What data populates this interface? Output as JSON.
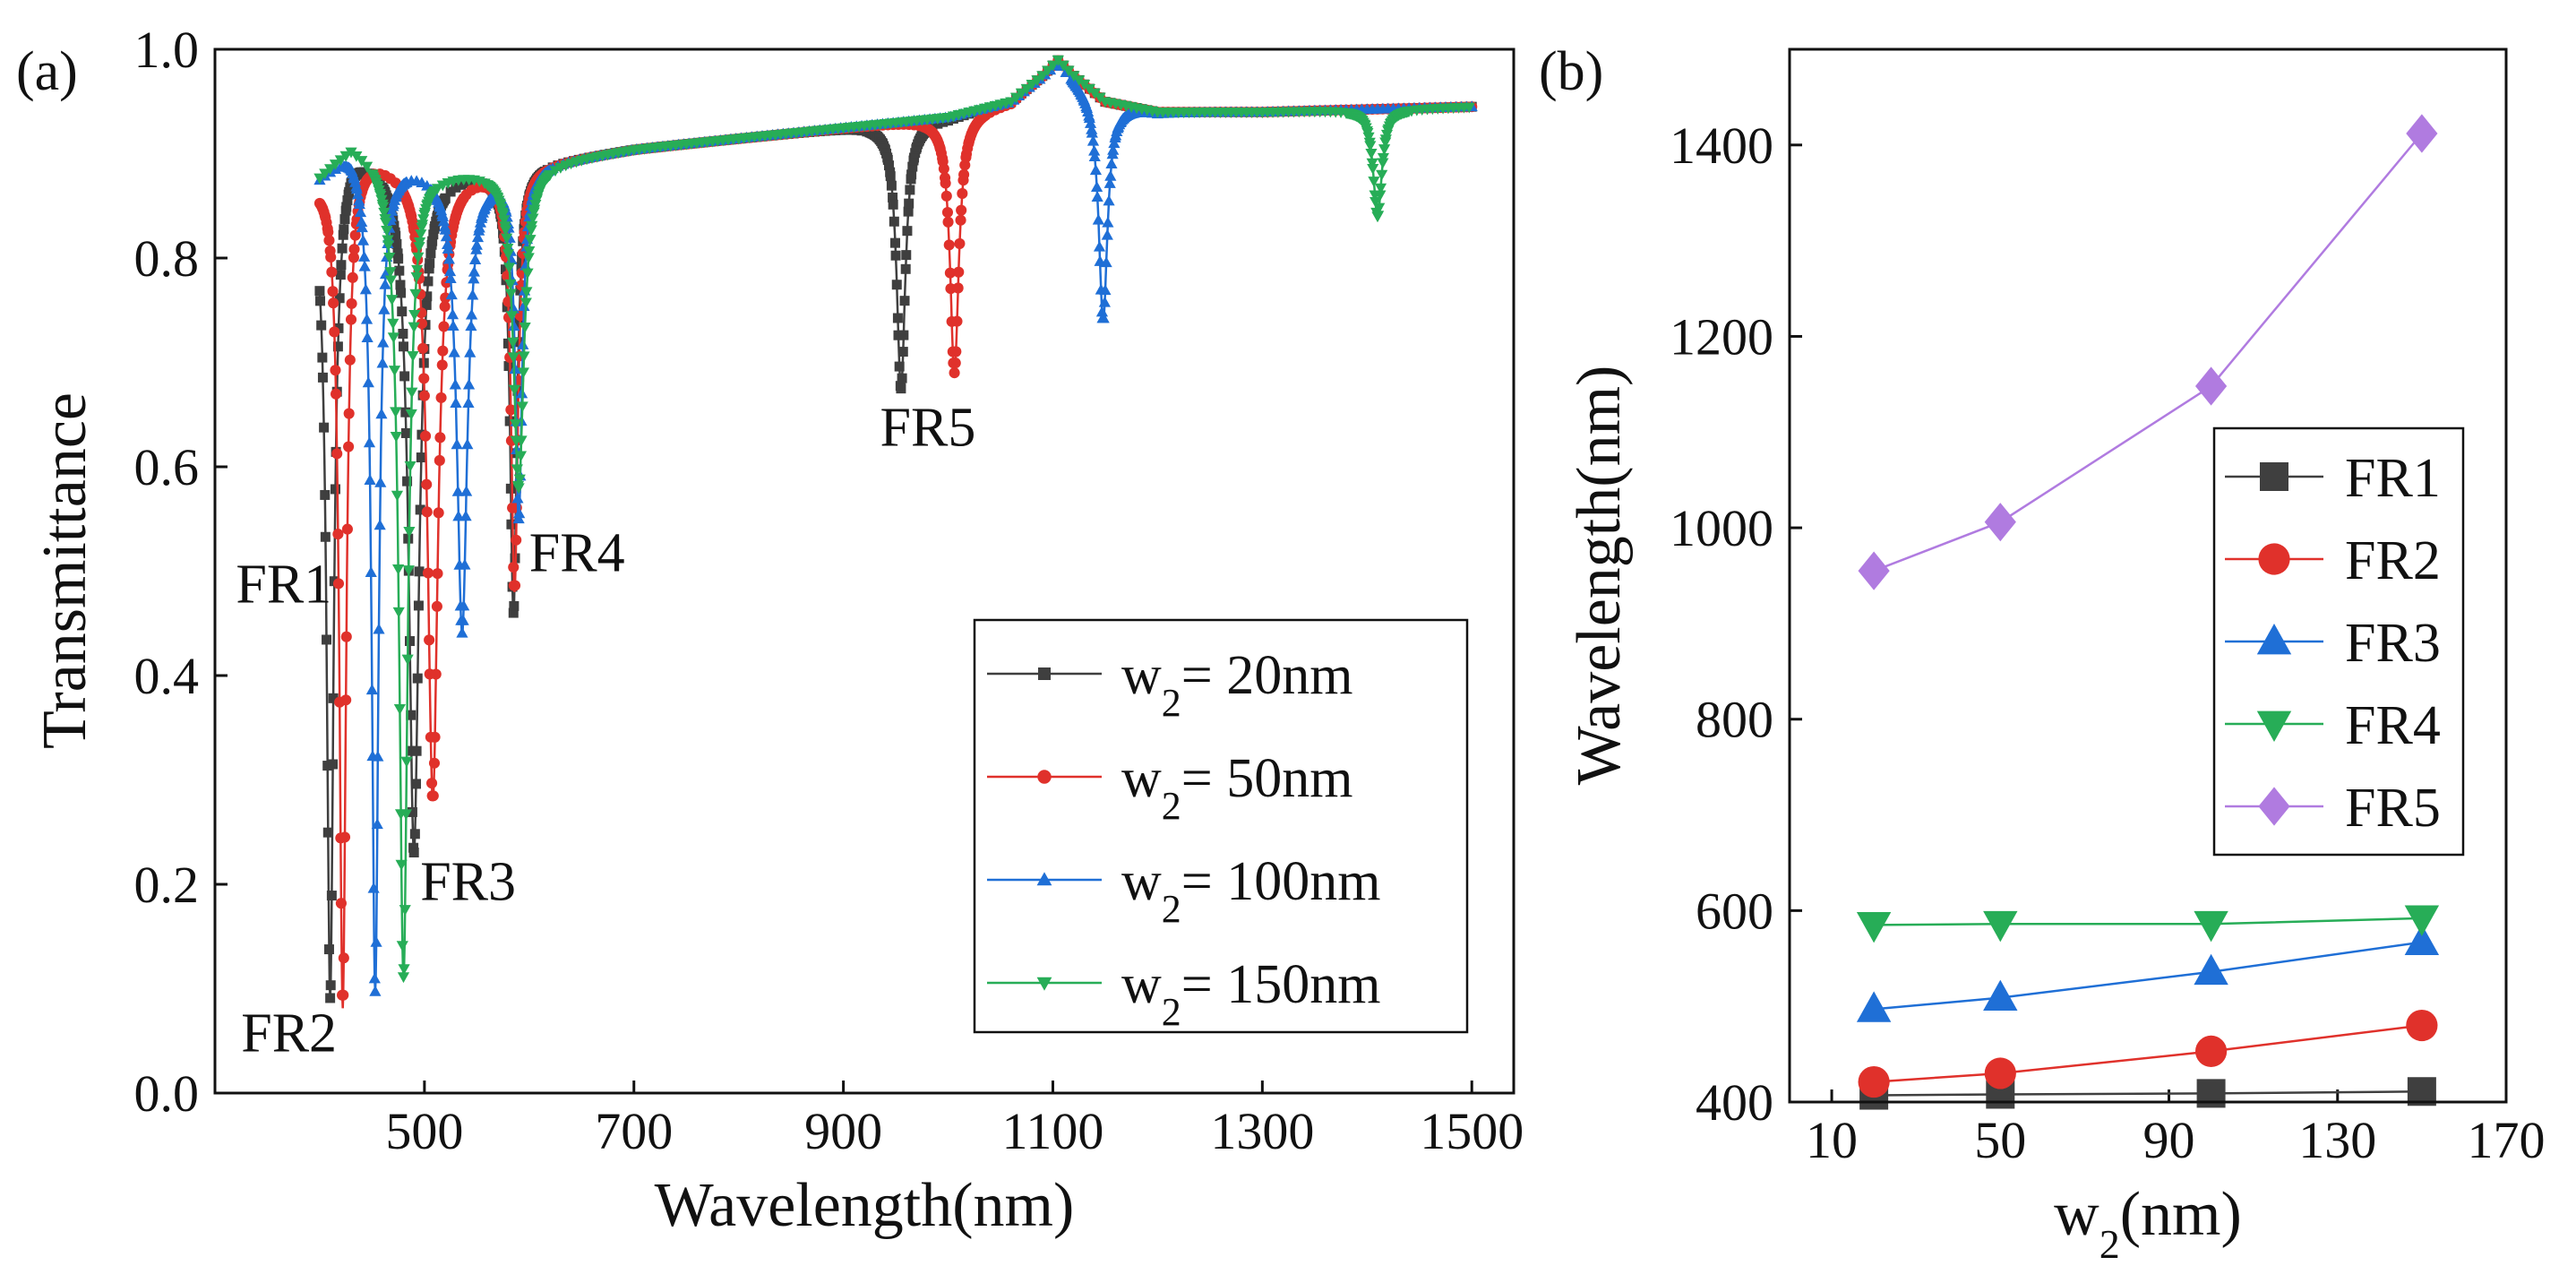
{
  "chart_data": [
    {
      "type": "line",
      "panel_label": "(a)",
      "xlabel": "Wavelength(nm)",
      "ylabel": "Transmittance",
      "xlim": [
        300,
        1540
      ],
      "ylim": [
        0.0,
        1.0
      ],
      "xticks": [
        500,
        700,
        900,
        1100,
        1300,
        1500
      ],
      "xtick_labels": [
        "500",
        "700",
        "900",
        "1100",
        "1300",
        "1500"
      ],
      "yticks": [
        0.0,
        0.2,
        0.4,
        0.6,
        0.8,
        1.0
      ],
      "ytick_labels": [
        "0.0",
        "0.2",
        "0.4",
        "0.6",
        "0.8",
        "1.0"
      ],
      "legend_position": "lower-right",
      "baseline": {
        "x": [
          400,
          430,
          470,
          520,
          570,
          600,
          700,
          900,
          1000,
          1060,
          1090,
          1105,
          1120,
          1150,
          1200,
          1300,
          1500
        ],
        "y": [
          0.88,
          0.91,
          0.895,
          0.885,
          0.885,
          0.89,
          0.905,
          0.925,
          0.935,
          0.95,
          0.975,
          0.99,
          0.975,
          0.95,
          0.94,
          0.94,
          0.945
        ]
      },
      "series": [
        {
          "name": "w2= 20nm",
          "legend_prefix": "w",
          "legend_sub": "2",
          "legend_suffix": "= 20nm",
          "color": "#3f3f3f",
          "marker": "square",
          "dips": [
            {
              "center": 410,
              "depth": 0.09,
              "width": 4
            },
            {
              "center": 490,
              "depth": 0.23,
              "width": 6
            },
            {
              "center": 585,
              "depth": 0.46,
              "width": 4
            },
            {
              "center": 955,
              "depth": 0.675,
              "width": 5
            }
          ]
        },
        {
          "name": "w2= 50nm",
          "legend_prefix": "w",
          "legend_sub": "2",
          "legend_suffix": "= 50nm",
          "color": "#e0312b",
          "marker": "circle",
          "dips": [
            {
              "center": 422,
              "depth": 0.08,
              "width": 4
            },
            {
              "center": 508,
              "depth": 0.28,
              "width": 6
            },
            {
              "center": 586,
              "depth": 0.48,
              "width": 4
            },
            {
              "center": 1006,
              "depth": 0.69,
              "width": 5
            }
          ]
        },
        {
          "name": "w2= 100nm",
          "legend_prefix": "w",
          "legend_sub": "2",
          "legend_suffix": "= 100nm",
          "color": "#1f6fd6",
          "marker": "triangle-up",
          "dips": [
            {
              "center": 453,
              "depth": 0.095,
              "width": 4
            },
            {
              "center": 536,
              "depth": 0.44,
              "width": 6
            },
            {
              "center": 590,
              "depth": 0.55,
              "width": 4
            },
            {
              "center": 1148,
              "depth": 0.74,
              "width": 5
            }
          ]
        },
        {
          "name": "w2= 150nm",
          "legend_prefix": "w",
          "legend_sub": "2",
          "legend_suffix": "= 150nm",
          "color": "#27ad57",
          "marker": "triangle-down",
          "dips": [
            {
              "center": 480,
              "depth": 0.11,
              "width": 5
            },
            {
              "center": 590,
              "depth": 0.58,
              "width": 6
            },
            {
              "center": 1410,
              "depth": 0.84,
              "width": 5
            }
          ]
        }
      ],
      "annotations": [
        {
          "text": "FR1",
          "x": 320,
          "y": 0.47
        },
        {
          "text": "FR2",
          "x": 325,
          "y": 0.04
        },
        {
          "text": "FR3",
          "x": 496,
          "y": 0.185
        },
        {
          "text": "FR4",
          "x": 600,
          "y": 0.5
        },
        {
          "text": "FR5",
          "x": 935,
          "y": 0.62
        }
      ]
    },
    {
      "type": "line",
      "panel_label": "(b)",
      "xlabel_main": "w",
      "xlabel_sub": "2",
      "xlabel_suffix": "(nm)",
      "ylabel": "Wavelength(nm)",
      "xlim": [
        0,
        170
      ],
      "ylim": [
        400,
        1500
      ],
      "xticks": [
        10,
        50,
        90,
        130,
        170
      ],
      "xtick_labels": [
        "10",
        "50",
        "90",
        "130",
        "170"
      ],
      "yticks": [
        400,
        600,
        800,
        1000,
        1200,
        1400
      ],
      "ytick_labels": [
        "400",
        "600",
        "800",
        "1000",
        "1200",
        "1400"
      ],
      "legend_position": "center-right",
      "x": [
        20,
        50,
        100,
        150
      ],
      "series": [
        {
          "name": "FR1",
          "color": "#3f3f3f",
          "marker": "square",
          "values": [
            407,
            408,
            409,
            411
          ]
        },
        {
          "name": "FR2",
          "color": "#e0312b",
          "marker": "circle",
          "values": [
            421,
            430,
            453,
            480
          ]
        },
        {
          "name": "FR3",
          "color": "#1f6fd6",
          "marker": "triangle-up",
          "values": [
            497,
            509,
            536,
            567
          ]
        },
        {
          "name": "FR4",
          "color": "#27ad57",
          "marker": "triangle-down",
          "values": [
            585,
            586,
            586,
            592
          ]
        },
        {
          "name": "FR5",
          "color": "#b07be0",
          "marker": "diamond",
          "values": [
            955,
            1006,
            1148,
            1412
          ]
        }
      ]
    }
  ]
}
